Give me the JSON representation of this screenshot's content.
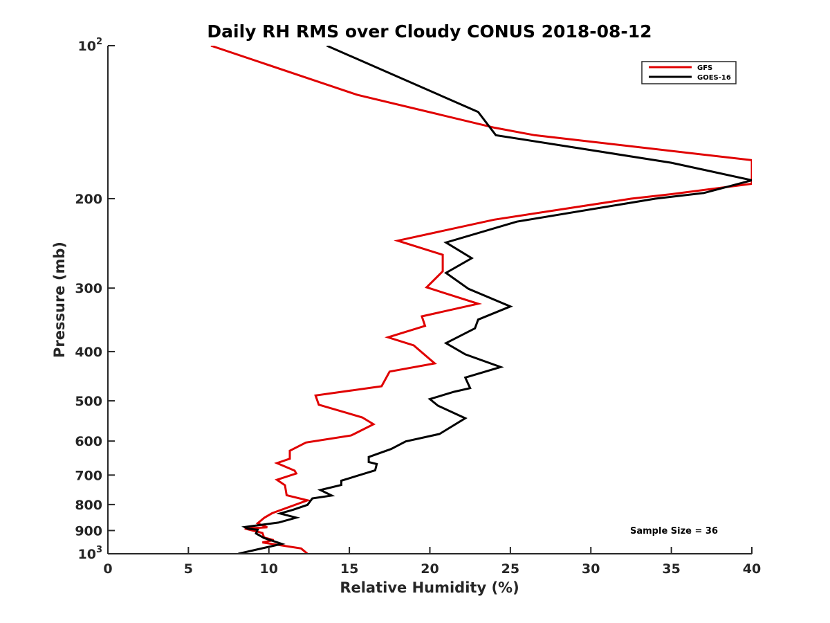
{
  "chart_data": {
    "type": "line",
    "title": "Daily RH RMS over Cloudy CONUS 2018-08-12",
    "xlabel": "Relative Humidity (%)",
    "ylabel": "Pressure (mb)",
    "xlim": [
      0,
      40
    ],
    "ylim": [
      100,
      1000
    ],
    "y_scale": "log",
    "y_reversed": true,
    "x_ticks": [
      0,
      5,
      10,
      15,
      20,
      25,
      30,
      35,
      40
    ],
    "x_tick_labels": [
      "0",
      "5",
      "10",
      "15",
      "20",
      "25",
      "30",
      "35",
      "40"
    ],
    "y_ticks": [
      {
        "value": 100,
        "base": "10",
        "exp": "2"
      },
      {
        "value": 200,
        "label": "200"
      },
      {
        "value": 300,
        "label": "300"
      },
      {
        "value": 400,
        "label": "400"
      },
      {
        "value": 500,
        "label": "500"
      },
      {
        "value": 600,
        "label": "600"
      },
      {
        "value": 700,
        "label": "700"
      },
      {
        "value": 800,
        "label": "800"
      },
      {
        "value": 900,
        "label": "900"
      },
      {
        "value": 1000,
        "base": "10",
        "exp": "3"
      }
    ],
    "legend_position": "top-right",
    "grid": false,
    "annotation": "Sample Size = 36",
    "series": [
      {
        "name": "GFS",
        "color": "#e00000",
        "points": [
          [
            6.4,
            100
          ],
          [
            15.5,
            125
          ],
          [
            24.0,
            145
          ],
          [
            26.5,
            150
          ],
          [
            40.0,
            168
          ],
          [
            40.0,
            187
          ],
          [
            35.0,
            196
          ],
          [
            32.5,
            200
          ],
          [
            24.0,
            220
          ],
          [
            18.0,
            242
          ],
          [
            20.8,
            258
          ],
          [
            20.8,
            278
          ],
          [
            19.8,
            299
          ],
          [
            23.0,
            322
          ],
          [
            19.5,
            341
          ],
          [
            19.7,
            356
          ],
          [
            17.4,
            375
          ],
          [
            19.0,
            389
          ],
          [
            20.3,
            422
          ],
          [
            17.5,
            438
          ],
          [
            17.0,
            468
          ],
          [
            12.9,
            488
          ],
          [
            13.1,
            509
          ],
          [
            15.8,
            539
          ],
          [
            16.5,
            556
          ],
          [
            15.3,
            581
          ],
          [
            15.1,
            585
          ],
          [
            12.3,
            604
          ],
          [
            11.3,
            627
          ],
          [
            11.3,
            650
          ],
          [
            10.5,
            663
          ],
          [
            11.6,
            686
          ],
          [
            11.7,
            695
          ],
          [
            10.5,
            715
          ],
          [
            11.0,
            733
          ],
          [
            11.1,
            767
          ],
          [
            12.4,
            785
          ],
          [
            10.2,
            832
          ],
          [
            9.7,
            850
          ],
          [
            9.3,
            871
          ],
          [
            9.9,
            887
          ],
          [
            8.5,
            892
          ],
          [
            9.6,
            910
          ],
          [
            9.7,
            929
          ],
          [
            10.3,
            940
          ],
          [
            9.6,
            950
          ],
          [
            12.0,
            976
          ],
          [
            12.4,
            1000
          ]
        ]
      },
      {
        "name": "GOES-16",
        "color": "#000000",
        "points": [
          [
            13.6,
            100
          ],
          [
            23.0,
            135
          ],
          [
            24.1,
            150
          ],
          [
            35.0,
            170
          ],
          [
            40.0,
            184
          ],
          [
            37.0,
            195
          ],
          [
            34.0,
            200
          ],
          [
            25.4,
            222
          ],
          [
            21.0,
            244
          ],
          [
            22.6,
            262
          ],
          [
            21.0,
            280
          ],
          [
            22.4,
            301
          ],
          [
            25.0,
            326
          ],
          [
            23.0,
            346
          ],
          [
            22.8,
            360
          ],
          [
            21.0,
            385
          ],
          [
            22.2,
            405
          ],
          [
            24.4,
            429
          ],
          [
            22.2,
            450
          ],
          [
            22.5,
            472
          ],
          [
            21.5,
            480
          ],
          [
            20.0,
            496
          ],
          [
            20.5,
            511
          ],
          [
            22.2,
            541
          ],
          [
            20.6,
            581
          ],
          [
            18.5,
            601
          ],
          [
            17.6,
            622
          ],
          [
            16.2,
            645
          ],
          [
            16.2,
            660
          ],
          [
            16.7,
            666
          ],
          [
            16.6,
            685
          ],
          [
            14.5,
            718
          ],
          [
            14.5,
            732
          ],
          [
            13.2,
            749
          ],
          [
            13.9,
            768
          ],
          [
            12.7,
            778
          ],
          [
            12.4,
            801
          ],
          [
            11.5,
            819
          ],
          [
            10.7,
            833
          ],
          [
            11.7,
            849
          ],
          [
            10.6,
            868
          ],
          [
            8.5,
            886
          ],
          [
            8.7,
            893
          ],
          [
            9.3,
            897
          ],
          [
            9.2,
            912
          ],
          [
            9.7,
            931
          ],
          [
            10.8,
            956
          ],
          [
            8.1,
            1000
          ]
        ]
      }
    ]
  }
}
